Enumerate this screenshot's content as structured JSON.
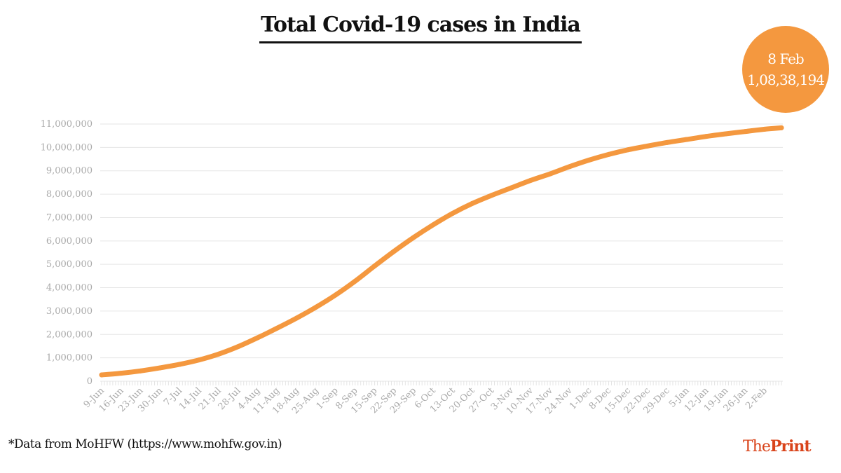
{
  "title": "Total Covid-19 cases in India",
  "callout": {
    "date": "8 Feb",
    "value": "1,08,38,194"
  },
  "footnote": "*Data from MoHFW (https://www.mohfw.gov.in)",
  "logo": {
    "the": "The",
    "print": "Print"
  },
  "colors": {
    "line": "#f4983f",
    "logo": "#d9441b",
    "grid": "#e6e6e6",
    "axis_text": "#aaaaaa"
  },
  "chart_data": {
    "type": "line",
    "title": "Total Covid-19 cases in India",
    "xlabel": "",
    "ylabel": "",
    "ylim": [
      0,
      11000000
    ],
    "yticks": [
      "0",
      "1,000,000",
      "2,000,000",
      "3,000,000",
      "4,000,000",
      "5,000,000",
      "6,000,000",
      "7,000,000",
      "8,000,000",
      "9,000,000",
      "10,000,000",
      "11,000,000"
    ],
    "grid": true,
    "x": [
      "9-Jun",
      "16-Jun",
      "23-Jun",
      "30-Jun",
      "7-Jul",
      "14-Jul",
      "21-Jul",
      "28-Jul",
      "4-Aug",
      "11-Aug",
      "18-Aug",
      "25-Aug",
      "1-Sep",
      "8-Sep",
      "15-Sep",
      "22-Sep",
      "29-Sep",
      "6-Oct",
      "13-Oct",
      "20-Oct",
      "27-Oct",
      "3-Nov",
      "10-Nov",
      "17-Nov",
      "24-Nov",
      "1-Dec",
      "8-Dec",
      "15-Dec",
      "22-Dec",
      "29-Dec",
      "5-Jan",
      "12-Jan",
      "19-Jan",
      "26-Jan",
      "2-Feb",
      "8-Feb"
    ],
    "xtick_labels": [
      "9-Jun",
      "16-Jun",
      "23-Jun",
      "30-Jun",
      "7-Jul",
      "14-Jul",
      "21-Jul",
      "28-Jul",
      "4-Aug",
      "11-Aug",
      "18-Aug",
      "25-Aug",
      "1-Sep",
      "8-Sep",
      "15-Sep",
      "22-Sep",
      "29-Sep",
      "6-Oct",
      "13-Oct",
      "20-Oct",
      "27-Oct",
      "3-Nov",
      "10-Nov",
      "17-Nov",
      "24-Nov",
      "1-Dec",
      "8-Dec",
      "15-Dec",
      "22-Dec",
      "29-Dec",
      "5-Jan",
      "12-Jan",
      "19-Jan",
      "26-Jan",
      "2-Feb"
    ],
    "values": [
      270000,
      340000,
      440000,
      570000,
      720000,
      910000,
      1160000,
      1480000,
      1860000,
      2270000,
      2700000,
      3170000,
      3690000,
      4280000,
      4930000,
      5560000,
      6150000,
      6690000,
      7180000,
      7600000,
      7950000,
      8270000,
      8590000,
      8870000,
      9180000,
      9460000,
      9700000,
      9900000,
      10060000,
      10210000,
      10340000,
      10470000,
      10580000,
      10680000,
      10780000,
      10838194
    ]
  }
}
